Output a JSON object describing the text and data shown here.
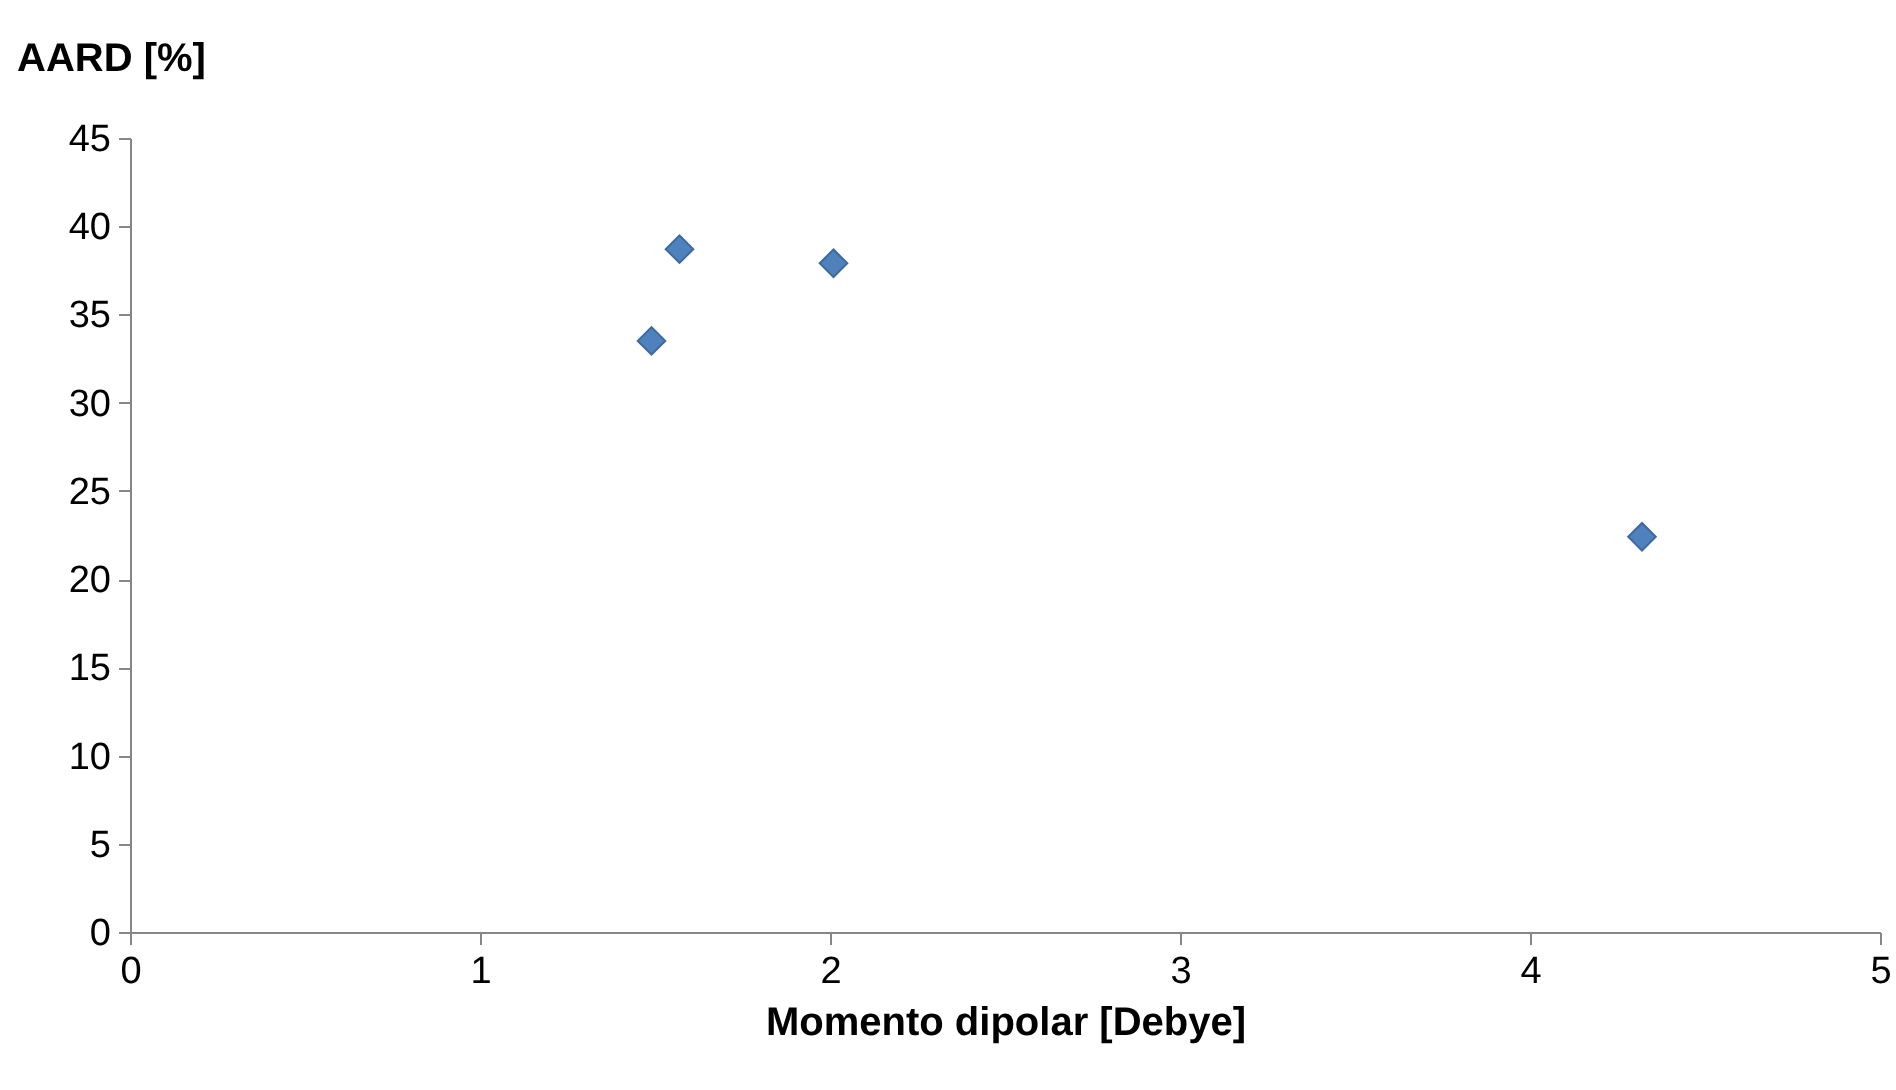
{
  "chart_data": {
    "type": "scatter",
    "xlabel": "Momento dipolar [Debye]",
    "ylabel": "AARD [%]",
    "x": [
      1.49,
      1.57,
      2.01,
      4.32
    ],
    "series": [
      {
        "color": "#4f81bd",
        "values": [
          33.5,
          38.7,
          37.9,
          22.4
        ]
      }
    ],
    "xlim": [
      0,
      5
    ],
    "xticks": [
      0,
      1,
      2,
      3,
      4,
      5
    ],
    "ylim": [
      0,
      45
    ],
    "yticks": [
      0,
      5,
      10,
      15,
      20,
      25,
      30,
      35,
      40,
      45
    ],
    "grid": false,
    "marker": "diamond"
  }
}
